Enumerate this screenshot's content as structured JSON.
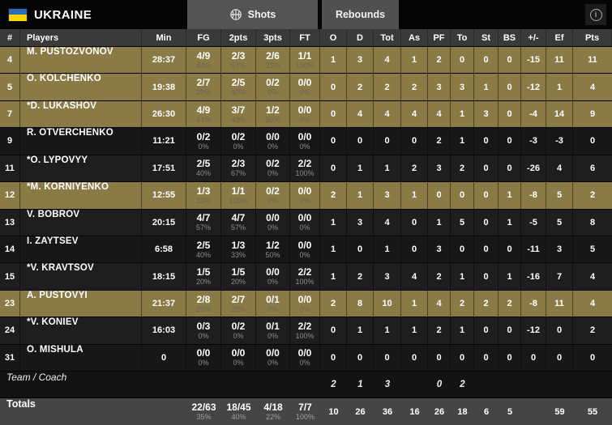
{
  "header": {
    "team": "UKRAINE",
    "flag": {
      "top": "#2e6db4",
      "bottom": "#ffd500"
    },
    "tabs": [
      {
        "label": "Shots",
        "icon": "basketball-icon"
      },
      {
        "label": "Rebounds"
      }
    ],
    "info_icon": "i"
  },
  "columns": [
    "#",
    "Players",
    "Min",
    "FG",
    "2pts",
    "3pts",
    "FT",
    "O",
    "D",
    "Tot",
    "As",
    "PF",
    "To",
    "St",
    "BS",
    "+/-",
    "Ef",
    "Pts"
  ],
  "players": [
    {
      "num": "4",
      "name": "M. PUSTOZVONOV",
      "min": "28:37",
      "fg": "4/9",
      "fg_pct": "44%",
      "p2": "2/3",
      "p2_pct": "67%",
      "p3": "2/6",
      "p3_pct": "33%",
      "ft": "1/1",
      "ft_pct": "100%",
      "o": "1",
      "d": "3",
      "tot": "4",
      "as": "1",
      "pf": "2",
      "to": "0",
      "st": "0",
      "bs": "0",
      "pm": "-15",
      "ef": "11",
      "pts": "11",
      "oncourt": true
    },
    {
      "num": "5",
      "name": "O. KOLCHENKO",
      "min": "19:38",
      "fg": "2/7",
      "fg_pct": "29%",
      "p2": "2/5",
      "p2_pct": "40%",
      "p3": "0/2",
      "p3_pct": "0%",
      "ft": "0/0",
      "ft_pct": "0%",
      "o": "0",
      "d": "2",
      "tot": "2",
      "as": "2",
      "pf": "3",
      "to": "3",
      "st": "1",
      "bs": "0",
      "pm": "-12",
      "ef": "1",
      "pts": "4",
      "oncourt": true
    },
    {
      "num": "7",
      "name": "*D. LUKASHOV",
      "min": "26:30",
      "fg": "4/9",
      "fg_pct": "44%",
      "p2": "3/7",
      "p2_pct": "43%",
      "p3": "1/2",
      "p3_pct": "50%",
      "ft": "0/0",
      "ft_pct": "0%",
      "o": "0",
      "d": "4",
      "tot": "4",
      "as": "4",
      "pf": "4",
      "to": "1",
      "st": "3",
      "bs": "0",
      "pm": "-4",
      "ef": "14",
      "pts": "9",
      "oncourt": true
    },
    {
      "num": "9",
      "name": "R. OTVERCHENKO",
      "min": "11:21",
      "fg": "0/2",
      "fg_pct": "0%",
      "p2": "0/2",
      "p2_pct": "0%",
      "p3": "0/0",
      "p3_pct": "0%",
      "ft": "0/0",
      "ft_pct": "0%",
      "o": "0",
      "d": "0",
      "tot": "0",
      "as": "0",
      "pf": "2",
      "to": "1",
      "st": "0",
      "bs": "0",
      "pm": "-3",
      "ef": "-3",
      "pts": "0",
      "oncourt": false
    },
    {
      "num": "11",
      "name": "*O. LYPOVYY",
      "min": "17:51",
      "fg": "2/5",
      "fg_pct": "40%",
      "p2": "2/3",
      "p2_pct": "67%",
      "p3": "0/2",
      "p3_pct": "0%",
      "ft": "2/2",
      "ft_pct": "100%",
      "o": "0",
      "d": "1",
      "tot": "1",
      "as": "2",
      "pf": "3",
      "to": "2",
      "st": "0",
      "bs": "0",
      "pm": "-26",
      "ef": "4",
      "pts": "6",
      "oncourt": false
    },
    {
      "num": "12",
      "name": "*M. KORNIYENKO",
      "min": "12:55",
      "fg": "1/3",
      "fg_pct": "33%",
      "p2": "1/1",
      "p2_pct": "100%",
      "p3": "0/2",
      "p3_pct": "0%",
      "ft": "0/0",
      "ft_pct": "0%",
      "o": "2",
      "d": "1",
      "tot": "3",
      "as": "1",
      "pf": "0",
      "to": "0",
      "st": "0",
      "bs": "1",
      "pm": "-8",
      "ef": "5",
      "pts": "2",
      "oncourt": true
    },
    {
      "num": "13",
      "name": "V. BOBROV",
      "min": "20:15",
      "fg": "4/7",
      "fg_pct": "57%",
      "p2": "4/7",
      "p2_pct": "57%",
      "p3": "0/0",
      "p3_pct": "0%",
      "ft": "0/0",
      "ft_pct": "0%",
      "o": "1",
      "d": "3",
      "tot": "4",
      "as": "0",
      "pf": "1",
      "to": "5",
      "st": "0",
      "bs": "1",
      "pm": "-5",
      "ef": "5",
      "pts": "8",
      "oncourt": false
    },
    {
      "num": "14",
      "name": "I. ZAYTSEV",
      "min": "6:58",
      "fg": "2/5",
      "fg_pct": "40%",
      "p2": "1/3",
      "p2_pct": "33%",
      "p3": "1/2",
      "p3_pct": "50%",
      "ft": "0/0",
      "ft_pct": "0%",
      "o": "1",
      "d": "0",
      "tot": "1",
      "as": "0",
      "pf": "3",
      "to": "0",
      "st": "0",
      "bs": "0",
      "pm": "-11",
      "ef": "3",
      "pts": "5",
      "oncourt": false
    },
    {
      "num": "15",
      "name": "*V. KRAVTSOV",
      "min": "18:15",
      "fg": "1/5",
      "fg_pct": "20%",
      "p2": "1/5",
      "p2_pct": "20%",
      "p3": "0/0",
      "p3_pct": "0%",
      "ft": "2/2",
      "ft_pct": "100%",
      "o": "1",
      "d": "2",
      "tot": "3",
      "as": "4",
      "pf": "2",
      "to": "1",
      "st": "0",
      "bs": "1",
      "pm": "-16",
      "ef": "7",
      "pts": "4",
      "oncourt": false
    },
    {
      "num": "23",
      "name": "A. PUSTOVYI",
      "min": "21:37",
      "fg": "2/8",
      "fg_pct": "25%",
      "p2": "2/7",
      "p2_pct": "29%",
      "p3": "0/1",
      "p3_pct": "0%",
      "ft": "0/0",
      "ft_pct": "0%",
      "o": "2",
      "d": "8",
      "tot": "10",
      "as": "1",
      "pf": "4",
      "to": "2",
      "st": "2",
      "bs": "2",
      "pm": "-8",
      "ef": "11",
      "pts": "4",
      "oncourt": true
    },
    {
      "num": "24",
      "name": "*V. KONIEV",
      "min": "16:03",
      "fg": "0/3",
      "fg_pct": "0%",
      "p2": "0/2",
      "p2_pct": "0%",
      "p3": "0/1",
      "p3_pct": "0%",
      "ft": "2/2",
      "ft_pct": "100%",
      "o": "0",
      "d": "1",
      "tot": "1",
      "as": "1",
      "pf": "2",
      "to": "1",
      "st": "0",
      "bs": "0",
      "pm": "-12",
      "ef": "0",
      "pts": "2",
      "oncourt": false
    },
    {
      "num": "31",
      "name": "O. MISHULA",
      "min": "0",
      "fg": "0/0",
      "fg_pct": "0%",
      "p2": "0/0",
      "p2_pct": "0%",
      "p3": "0/0",
      "p3_pct": "0%",
      "ft": "0/0",
      "ft_pct": "0%",
      "o": "0",
      "d": "0",
      "tot": "0",
      "as": "0",
      "pf": "0",
      "to": "0",
      "st": "0",
      "bs": "0",
      "pm": "0",
      "ef": "0",
      "pts": "0",
      "oncourt": false
    }
  ],
  "team_row": {
    "label": "Team / Coach",
    "o": "2",
    "d": "1",
    "tot": "3",
    "pf": "0",
    "to": "2"
  },
  "totals": {
    "label": "Totals",
    "fg": "22/63",
    "fg_pct": "35%",
    "p2": "18/45",
    "p2_pct": "40%",
    "p3": "4/18",
    "p3_pct": "22%",
    "ft": "7/7",
    "ft_pct": "100%",
    "o": "10",
    "d": "26",
    "tot": "36",
    "as": "16",
    "pf": "26",
    "to": "18",
    "st": "6",
    "bs": "5",
    "pm": "",
    "ef": "59",
    "pts": "55"
  },
  "colors": {
    "oncourt_row": "#8a7a45",
    "dark_row": "#1e1e21",
    "header_bar": "#050505",
    "tab": "#545456",
    "totals_row": "#454547"
  }
}
